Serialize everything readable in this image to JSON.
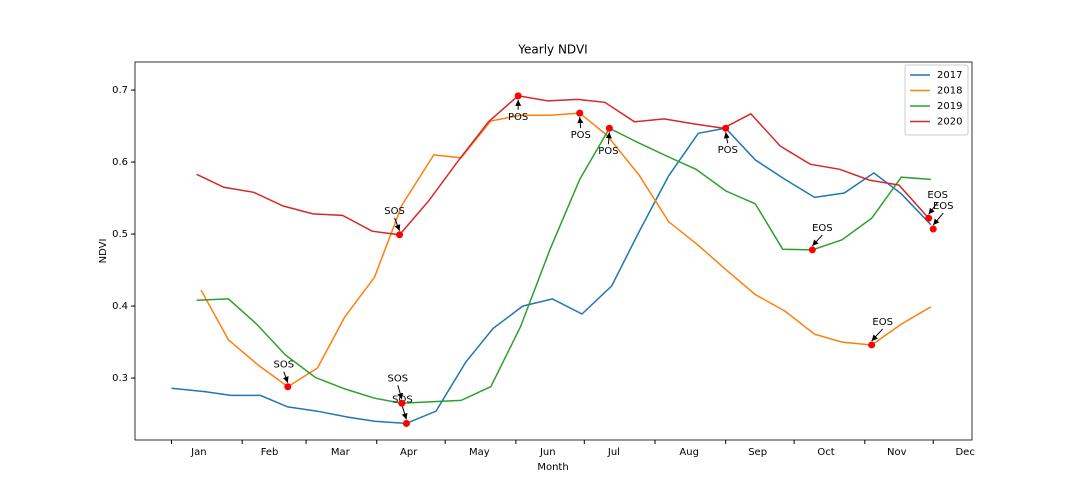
{
  "chart_data": {
    "type": "line",
    "title": "Yearly NDVI",
    "x_label": "Month",
    "y_label": "NDVI",
    "xlim": [
      -15,
      352
    ],
    "ylim": [
      0.214,
      0.739
    ],
    "xticks": [
      1,
      32,
      60,
      91,
      121,
      152,
      182,
      213,
      244,
      274,
      305,
      335
    ],
    "xticklabels": [
      {
        "value": 13,
        "label": "Jan"
      },
      {
        "value": 44,
        "label": "Feb"
      },
      {
        "value": 75,
        "label": "Mar"
      },
      {
        "value": 105,
        "label": "Apr"
      },
      {
        "value": 136,
        "label": "May"
      },
      {
        "value": 166,
        "label": "Jun"
      },
      {
        "value": 195,
        "label": "Jul"
      },
      {
        "value": 228,
        "label": "Aug"
      },
      {
        "value": 258,
        "label": "Sep"
      },
      {
        "value": 288,
        "label": "Oct"
      },
      {
        "value": 319,
        "label": "Nov"
      },
      {
        "value": 349,
        "label": "Dec"
      }
    ],
    "yticks": [
      0.3,
      0.4,
      0.5,
      0.6,
      0.7
    ],
    "legend": "upper right",
    "series": [
      {
        "name": "2017",
        "color": "#1f77b4",
        "x": [
          1,
          16,
          27,
          40,
          52,
          65,
          78,
          90,
          104,
          117,
          130,
          142,
          155,
          168,
          181,
          194,
          206,
          219,
          232,
          244,
          257,
          270,
          283,
          296,
          309,
          321,
          334
        ],
        "values": [
          0.286,
          0.281,
          0.276,
          0.276,
          0.26,
          0.254,
          0.246,
          0.24,
          0.237,
          0.254,
          0.322,
          0.369,
          0.4,
          0.41,
          0.389,
          0.428,
          0.503,
          0.581,
          0.64,
          0.647,
          0.603,
          0.576,
          0.551,
          0.557,
          0.585,
          0.556,
          0.513
        ]
      },
      {
        "name": "2018",
        "color": "#ff7f0e",
        "x": [
          14,
          26,
          39,
          52,
          65,
          77,
          90,
          102,
          116,
          128,
          141,
          154,
          167,
          180,
          192,
          206,
          219,
          231,
          244,
          257,
          270,
          283,
          295,
          308,
          321,
          334
        ],
        "values": [
          0.422,
          0.353,
          0.318,
          0.288,
          0.314,
          0.385,
          0.44,
          0.54,
          0.61,
          0.606,
          0.657,
          0.665,
          0.665,
          0.668,
          0.637,
          0.582,
          0.517,
          0.487,
          0.451,
          0.416,
          0.393,
          0.361,
          0.35,
          0.346,
          0.375,
          0.399
        ]
      },
      {
        "name": "2019",
        "color": "#2ca02c",
        "x": [
          12,
          26,
          38,
          51,
          64,
          77,
          90,
          102,
          115,
          128,
          141,
          154,
          167,
          180,
          193,
          205,
          219,
          231,
          244,
          257,
          269,
          282,
          295,
          308,
          321,
          334
        ],
        "values": [
          0.408,
          0.41,
          0.376,
          0.332,
          0.301,
          0.285,
          0.272,
          0.265,
          0.267,
          0.269,
          0.288,
          0.371,
          0.479,
          0.576,
          0.647,
          0.628,
          0.607,
          0.59,
          0.56,
          0.542,
          0.479,
          0.478,
          0.492,
          0.522,
          0.579,
          0.576
        ]
      },
      {
        "name": "2020",
        "color": "#d62728",
        "x": [
          12,
          24,
          37,
          50,
          63,
          76,
          89,
          101,
          114,
          127,
          140,
          153,
          166,
          179,
          191,
          204,
          217,
          230,
          243,
          255,
          268,
          281,
          294,
          307,
          320,
          333
        ],
        "values": [
          0.583,
          0.565,
          0.558,
          0.539,
          0.528,
          0.526,
          0.504,
          0.499,
          0.547,
          0.603,
          0.656,
          0.692,
          0.685,
          0.687,
          0.683,
          0.656,
          0.66,
          0.653,
          0.647,
          0.667,
          0.622,
          0.597,
          0.59,
          0.575,
          0.568,
          0.522
        ]
      }
    ],
    "marker_color": "#ff0000",
    "annotations": [
      {
        "text": "SOS",
        "x": 52,
        "y": 0.288
      },
      {
        "text": "SOS",
        "x": 104,
        "y": 0.237
      },
      {
        "text": "SOS",
        "x": 102,
        "y": 0.265
      },
      {
        "text": "SOS",
        "x": 101,
        "y": 0.499
      },
      {
        "text": "POS",
        "x": 153,
        "y": 0.692
      },
      {
        "text": "POS",
        "x": 180,
        "y": 0.668
      },
      {
        "text": "POS",
        "x": 193,
        "y": 0.647
      },
      {
        "text": "POS",
        "x": 244,
        "y": 0.647
      },
      {
        "text": "EOS",
        "x": 282,
        "y": 0.478
      },
      {
        "text": "EOS",
        "x": 308,
        "y": 0.346
      },
      {
        "text": "EOS",
        "x": 333,
        "y": 0.522
      },
      {
        "text": "EOS",
        "x": 335,
        "y": 0.507
      }
    ]
  }
}
